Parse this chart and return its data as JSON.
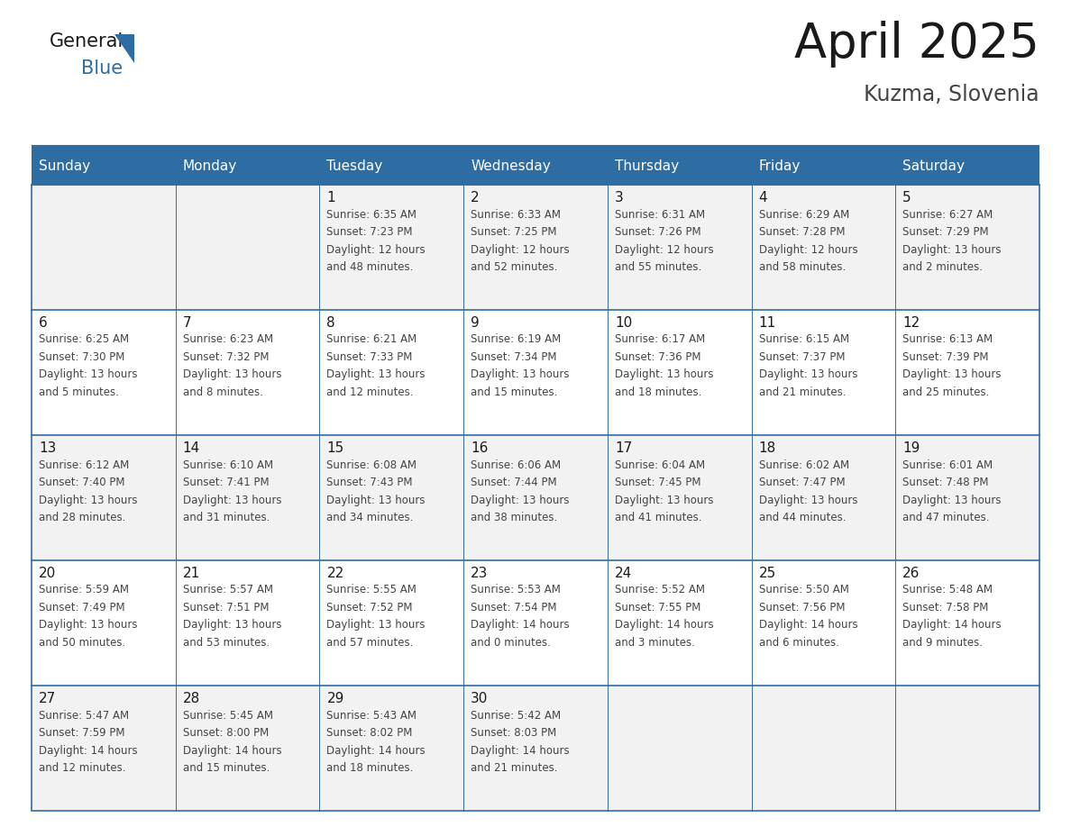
{
  "title": "April 2025",
  "subtitle": "Kuzma, Slovenia",
  "header_bg": "#2E6DA4",
  "header_text_color": "#FFFFFF",
  "cell_bg_odd": "#F2F2F2",
  "cell_bg_even": "#FFFFFF",
  "day_names": [
    "Sunday",
    "Monday",
    "Tuesday",
    "Wednesday",
    "Thursday",
    "Friday",
    "Saturday"
  ],
  "title_color": "#1a1a1a",
  "subtitle_color": "#444444",
  "day_number_color": "#1a1a1a",
  "cell_text_color": "#444444",
  "border_color": "#2E6DA4",
  "logo_general_color": "#1a1a1a",
  "logo_blue_color": "#2E6DA4",
  "logo_triangle_color": "#2E6DA4",
  "weeks": [
    [
      {
        "date": "",
        "sunrise": "",
        "sunset": "",
        "daylight_h": "",
        "daylight_m": ""
      },
      {
        "date": "",
        "sunrise": "",
        "sunset": "",
        "daylight_h": "",
        "daylight_m": ""
      },
      {
        "date": "1",
        "sunrise": "6:35 AM",
        "sunset": "7:23 PM",
        "daylight_h": "12 hours",
        "daylight_m": "and 48 minutes."
      },
      {
        "date": "2",
        "sunrise": "6:33 AM",
        "sunset": "7:25 PM",
        "daylight_h": "12 hours",
        "daylight_m": "and 52 minutes."
      },
      {
        "date": "3",
        "sunrise": "6:31 AM",
        "sunset": "7:26 PM",
        "daylight_h": "12 hours",
        "daylight_m": "and 55 minutes."
      },
      {
        "date": "4",
        "sunrise": "6:29 AM",
        "sunset": "7:28 PM",
        "daylight_h": "12 hours",
        "daylight_m": "and 58 minutes."
      },
      {
        "date": "5",
        "sunrise": "6:27 AM",
        "sunset": "7:29 PM",
        "daylight_h": "13 hours",
        "daylight_m": "and 2 minutes."
      }
    ],
    [
      {
        "date": "6",
        "sunrise": "6:25 AM",
        "sunset": "7:30 PM",
        "daylight_h": "13 hours",
        "daylight_m": "and 5 minutes."
      },
      {
        "date": "7",
        "sunrise": "6:23 AM",
        "sunset": "7:32 PM",
        "daylight_h": "13 hours",
        "daylight_m": "and 8 minutes."
      },
      {
        "date": "8",
        "sunrise": "6:21 AM",
        "sunset": "7:33 PM",
        "daylight_h": "13 hours",
        "daylight_m": "and 12 minutes."
      },
      {
        "date": "9",
        "sunrise": "6:19 AM",
        "sunset": "7:34 PM",
        "daylight_h": "13 hours",
        "daylight_m": "and 15 minutes."
      },
      {
        "date": "10",
        "sunrise": "6:17 AM",
        "sunset": "7:36 PM",
        "daylight_h": "13 hours",
        "daylight_m": "and 18 minutes."
      },
      {
        "date": "11",
        "sunrise": "6:15 AM",
        "sunset": "7:37 PM",
        "daylight_h": "13 hours",
        "daylight_m": "and 21 minutes."
      },
      {
        "date": "12",
        "sunrise": "6:13 AM",
        "sunset": "7:39 PM",
        "daylight_h": "13 hours",
        "daylight_m": "and 25 minutes."
      }
    ],
    [
      {
        "date": "13",
        "sunrise": "6:12 AM",
        "sunset": "7:40 PM",
        "daylight_h": "13 hours",
        "daylight_m": "and 28 minutes."
      },
      {
        "date": "14",
        "sunrise": "6:10 AM",
        "sunset": "7:41 PM",
        "daylight_h": "13 hours",
        "daylight_m": "and 31 minutes."
      },
      {
        "date": "15",
        "sunrise": "6:08 AM",
        "sunset": "7:43 PM",
        "daylight_h": "13 hours",
        "daylight_m": "and 34 minutes."
      },
      {
        "date": "16",
        "sunrise": "6:06 AM",
        "sunset": "7:44 PM",
        "daylight_h": "13 hours",
        "daylight_m": "and 38 minutes."
      },
      {
        "date": "17",
        "sunrise": "6:04 AM",
        "sunset": "7:45 PM",
        "daylight_h": "13 hours",
        "daylight_m": "and 41 minutes."
      },
      {
        "date": "18",
        "sunrise": "6:02 AM",
        "sunset": "7:47 PM",
        "daylight_h": "13 hours",
        "daylight_m": "and 44 minutes."
      },
      {
        "date": "19",
        "sunrise": "6:01 AM",
        "sunset": "7:48 PM",
        "daylight_h": "13 hours",
        "daylight_m": "and 47 minutes."
      }
    ],
    [
      {
        "date": "20",
        "sunrise": "5:59 AM",
        "sunset": "7:49 PM",
        "daylight_h": "13 hours",
        "daylight_m": "and 50 minutes."
      },
      {
        "date": "21",
        "sunrise": "5:57 AM",
        "sunset": "7:51 PM",
        "daylight_h": "13 hours",
        "daylight_m": "and 53 minutes."
      },
      {
        "date": "22",
        "sunrise": "5:55 AM",
        "sunset": "7:52 PM",
        "daylight_h": "13 hours",
        "daylight_m": "and 57 minutes."
      },
      {
        "date": "23",
        "sunrise": "5:53 AM",
        "sunset": "7:54 PM",
        "daylight_h": "14 hours",
        "daylight_m": "and 0 minutes."
      },
      {
        "date": "24",
        "sunrise": "5:52 AM",
        "sunset": "7:55 PM",
        "daylight_h": "14 hours",
        "daylight_m": "and 3 minutes."
      },
      {
        "date": "25",
        "sunrise": "5:50 AM",
        "sunset": "7:56 PM",
        "daylight_h": "14 hours",
        "daylight_m": "and 6 minutes."
      },
      {
        "date": "26",
        "sunrise": "5:48 AM",
        "sunset": "7:58 PM",
        "daylight_h": "14 hours",
        "daylight_m": "and 9 minutes."
      }
    ],
    [
      {
        "date": "27",
        "sunrise": "5:47 AM",
        "sunset": "7:59 PM",
        "daylight_h": "14 hours",
        "daylight_m": "and 12 minutes."
      },
      {
        "date": "28",
        "sunrise": "5:45 AM",
        "sunset": "8:00 PM",
        "daylight_h": "14 hours",
        "daylight_m": "and 15 minutes."
      },
      {
        "date": "29",
        "sunrise": "5:43 AM",
        "sunset": "8:02 PM",
        "daylight_h": "14 hours",
        "daylight_m": "and 18 minutes."
      },
      {
        "date": "30",
        "sunrise": "5:42 AM",
        "sunset": "8:03 PM",
        "daylight_h": "14 hours",
        "daylight_m": "and 21 minutes."
      },
      {
        "date": "",
        "sunrise": "",
        "sunset": "",
        "daylight_h": "",
        "daylight_m": ""
      },
      {
        "date": "",
        "sunrise": "",
        "sunset": "",
        "daylight_h": "",
        "daylight_m": ""
      },
      {
        "date": "",
        "sunrise": "",
        "sunset": "",
        "daylight_h": "",
        "daylight_m": ""
      }
    ]
  ]
}
